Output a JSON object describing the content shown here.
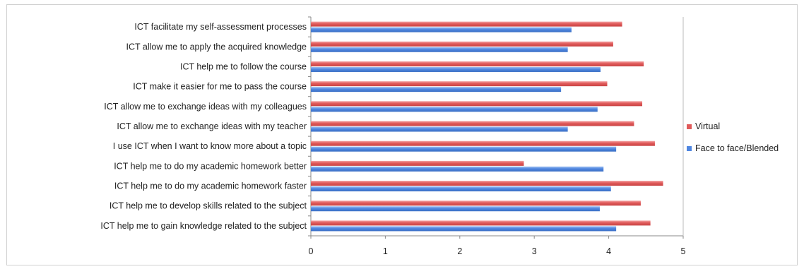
{
  "chart_data": {
    "type": "bar",
    "orientation": "horizontal",
    "title": "",
    "xlabel": "",
    "ylabel": "",
    "xlim": [
      0,
      5
    ],
    "x_ticks": [
      "0",
      "1",
      "2",
      "3",
      "4",
      "5"
    ],
    "grid": false,
    "legend_position": "right",
    "categories": [
      "ICT facilitate my self-assessment processes",
      "ICT allow me to apply the acquired knowledge",
      "ICT help me to follow the course",
      "ICT make it easier for me to pass the course",
      "ICT allow me to exchange ideas with my colleagues",
      "ICT allow me to exchange ideas with my teacher",
      "I use ICT when I want to know more about a topic",
      "ICT help me to do my academic homework better",
      "ICT help me to do my academic homework faster",
      "ICT help me to develop skills related to the subject",
      "ICT help me to gain knowledge related to the subject"
    ],
    "series": [
      {
        "name": "Virtual",
        "color": "#e05a5a",
        "values": [
          4.18,
          4.06,
          4.47,
          3.98,
          4.45,
          4.34,
          4.62,
          2.86,
          4.73,
          4.43,
          4.56
        ]
      },
      {
        "name": "Face to face/Blended",
        "color": "#4f86e0",
        "values": [
          3.5,
          3.45,
          3.89,
          3.36,
          3.85,
          3.45,
          4.1,
          3.93,
          4.03,
          3.88,
          4.1
        ]
      }
    ]
  }
}
